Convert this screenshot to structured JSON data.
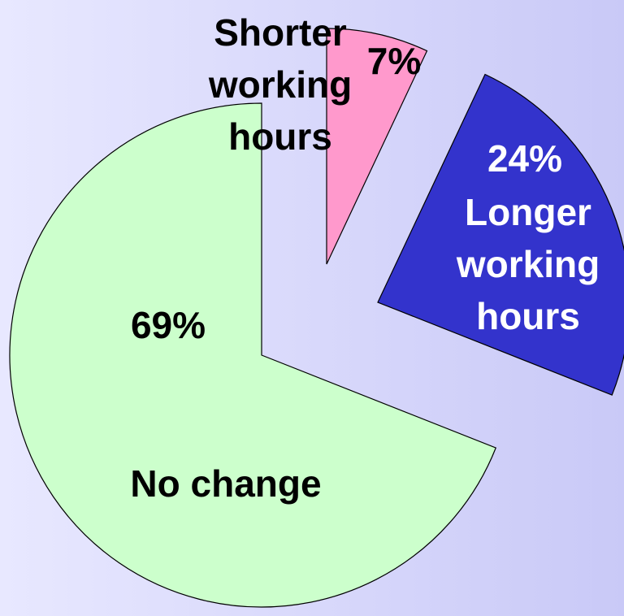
{
  "chart_data": {
    "type": "pie",
    "categories": [
      "Shorter working hours",
      "Longer working hours",
      "No change"
    ],
    "values": [
      7,
      24,
      69
    ],
    "value_labels": [
      "7%",
      "24%",
      "69%"
    ],
    "colors": [
      "#ff99cc",
      "#3333cc",
      "#ccffcc"
    ]
  }
}
